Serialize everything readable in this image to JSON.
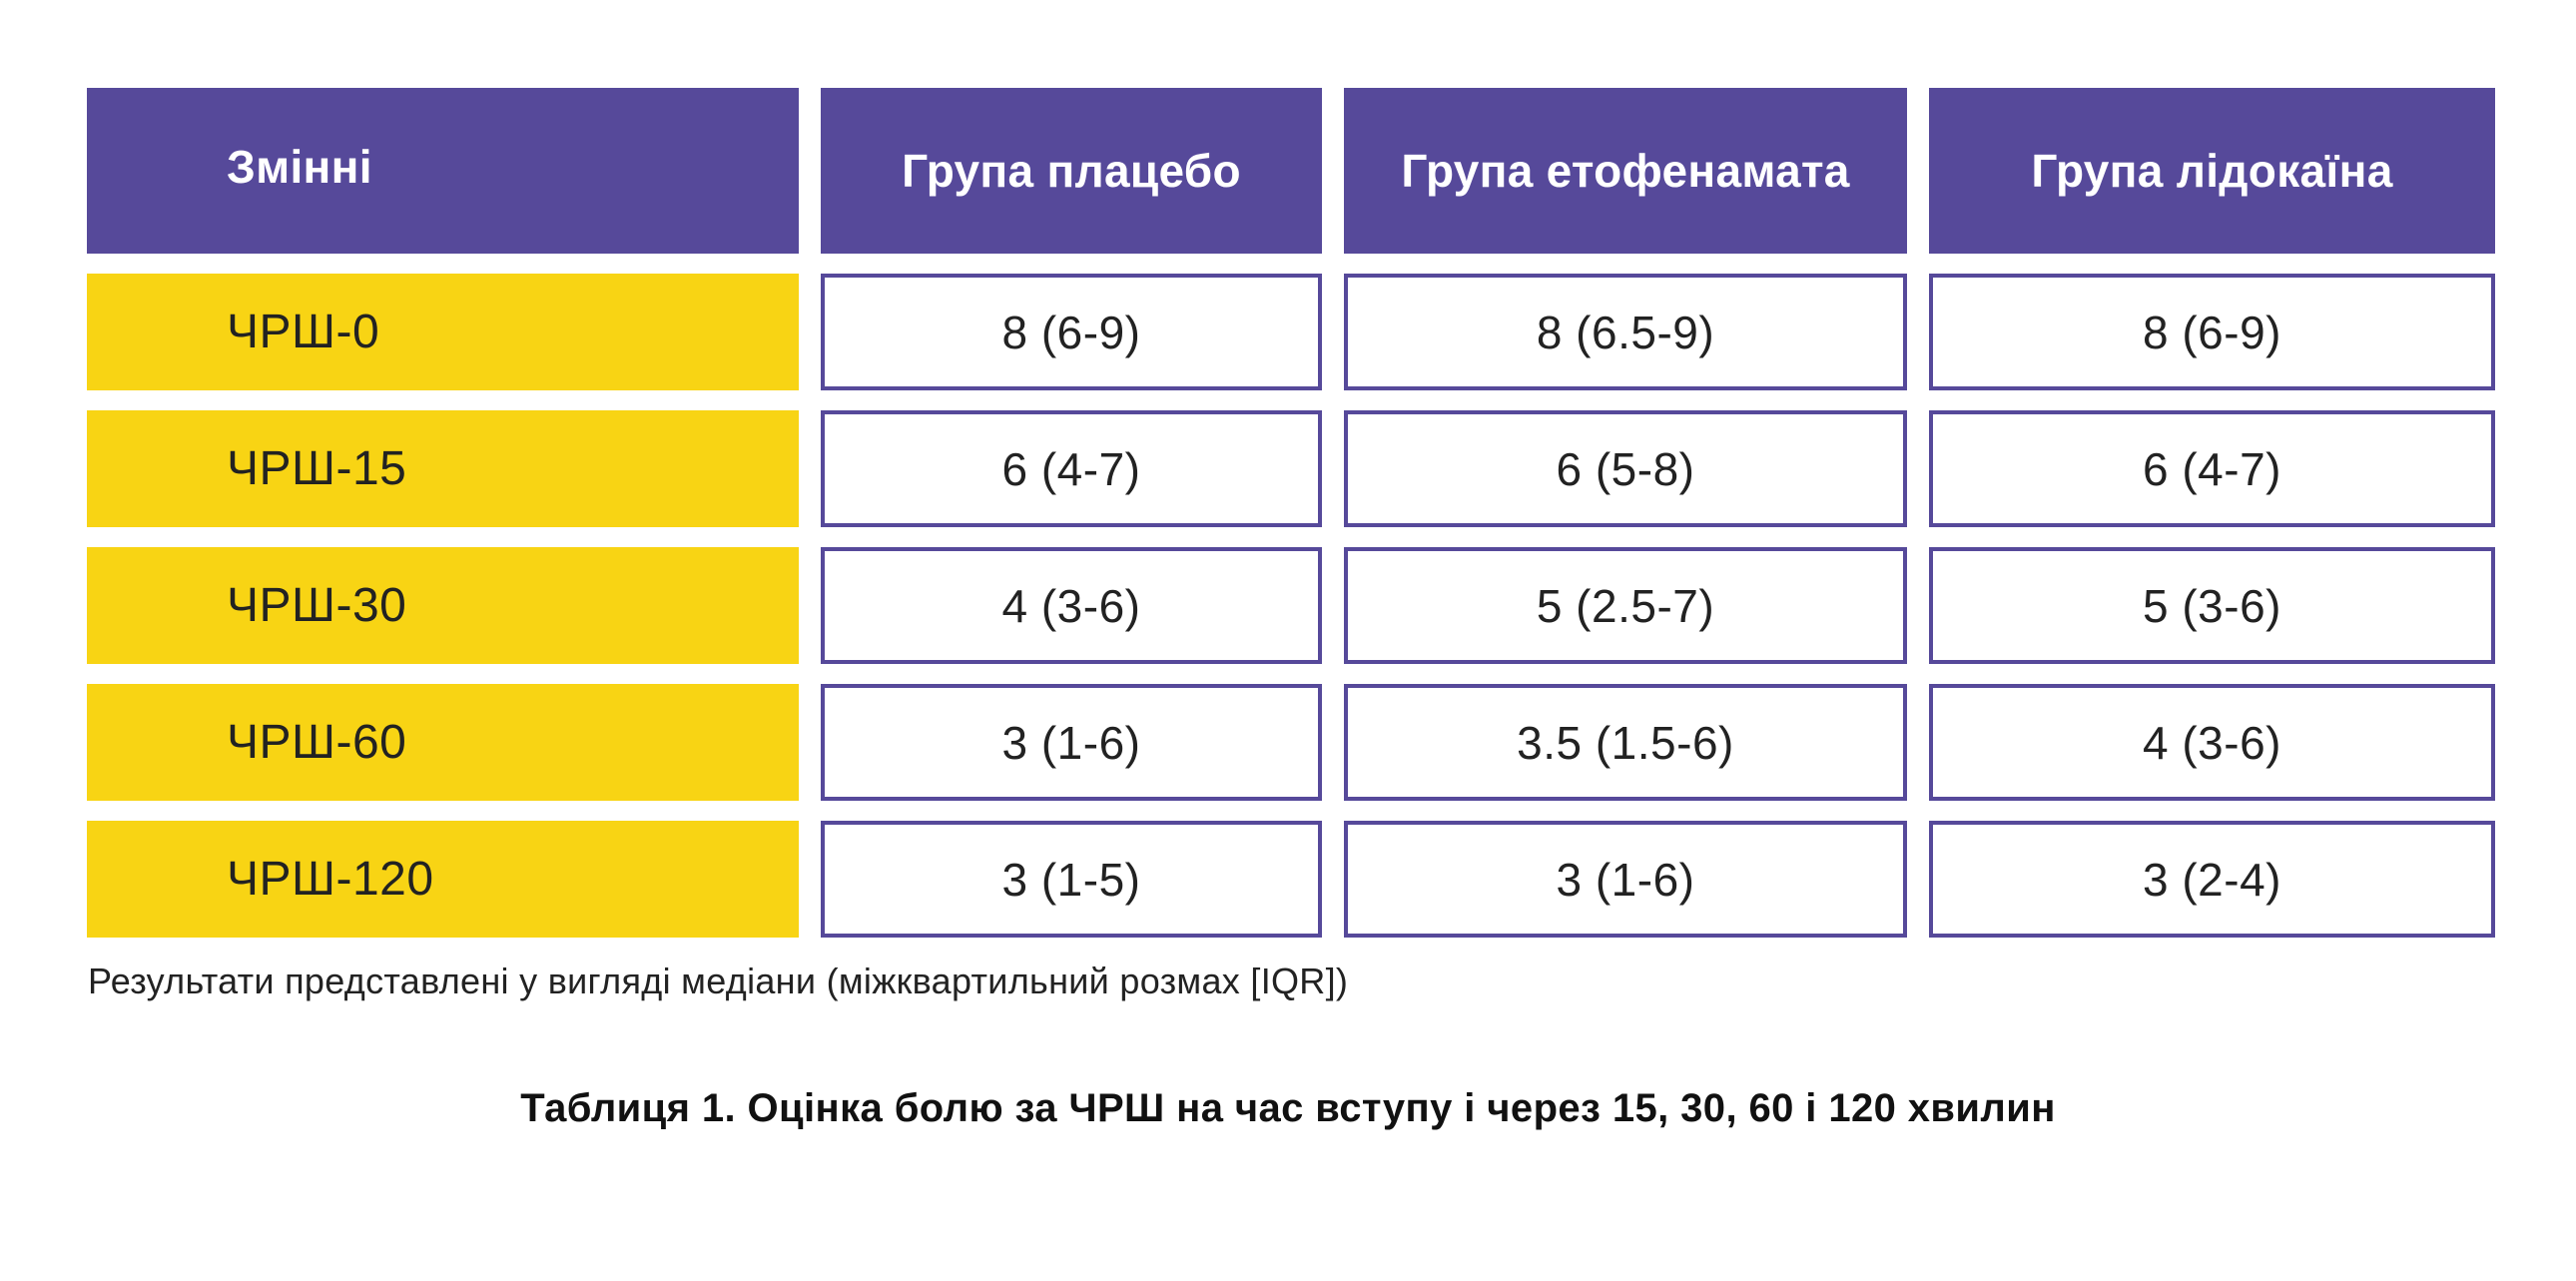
{
  "table": {
    "headers": [
      "Змінні",
      "Група плацебо",
      "Група етофенамата",
      "Група лідокаїна"
    ],
    "rows": [
      {
        "label": "ЧРШ-0",
        "values": [
          "8 (6-9)",
          "8 (6.5-9)",
          "8 (6-9)"
        ]
      },
      {
        "label": "ЧРШ-15",
        "values": [
          "6 (4-7)",
          "6 (5-8)",
          "6 (4-7)"
        ]
      },
      {
        "label": "ЧРШ-30",
        "values": [
          "4 (3-6)",
          "5 (2.5-7)",
          "5 (3-6)"
        ]
      },
      {
        "label": "ЧРШ-60",
        "values": [
          "3 (1-6)",
          "3.5 (1.5-6)",
          "4 (3-6)"
        ]
      },
      {
        "label": "ЧРШ-120",
        "values": [
          "3 (1-5)",
          "3 (1-6)",
          "3 (2-4)"
        ]
      }
    ]
  },
  "note": "Результати представлені у вигляді медіани (міжквартильний розмах [IQR])",
  "caption": "Таблиця 1. Оцінка болю за ЧРШ на час вступу і через 15, 30, 60 і 120 хвилин",
  "colors": {
    "header_bg": "#56499a",
    "variable_bg": "#f8d414",
    "cell_border": "#56499a"
  }
}
